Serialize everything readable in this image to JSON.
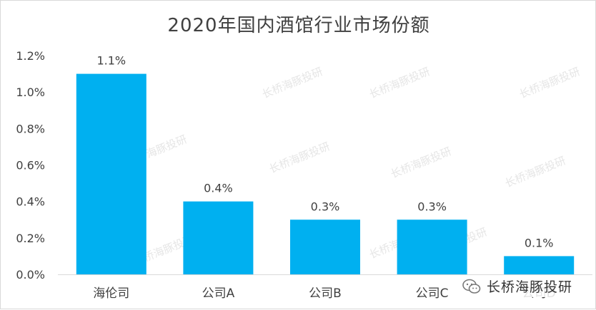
{
  "chart_data": {
    "type": "bar",
    "title": "2020年国内酒馆行业市场份额",
    "categories": [
      "海伦司",
      "公司A",
      "公司B",
      "公司C",
      "公司D"
    ],
    "values": [
      1.1,
      0.4,
      0.3,
      0.3,
      0.1
    ],
    "data_labels": [
      "1.1%",
      "0.4%",
      "0.3%",
      "0.3%",
      "0.1%"
    ],
    "ylim": [
      0,
      1.2
    ],
    "yticks": [
      0.0,
      0.2,
      0.4,
      0.6,
      0.8,
      1.0,
      1.2
    ],
    "ytick_labels": [
      "0.0%",
      "0.2%",
      "0.4%",
      "0.6%",
      "0.8%",
      "1.0%",
      "1.2%"
    ],
    "xlabel": "",
    "ylabel": "",
    "grid": false,
    "bar_color": "#00b0f0"
  },
  "watermark": {
    "text": "长桥海豚投研"
  },
  "brand": {
    "name": "长桥海豚投研",
    "icon": "wechat-icon"
  }
}
